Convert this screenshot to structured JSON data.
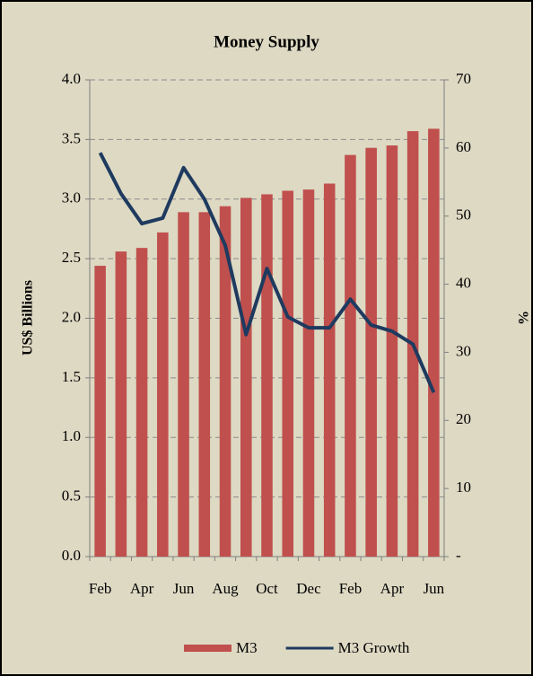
{
  "chart_data": {
    "type": "bar",
    "title": "Money Supply",
    "y_label": "US$ Billions",
    "y2_label": "%",
    "categories": [
      "Feb",
      null,
      "Apr",
      null,
      "Jun",
      null,
      "Aug",
      null,
      "Oct",
      null,
      "Dec",
      null,
      "Feb",
      null,
      "Apr",
      null,
      "Jun"
    ],
    "series": [
      {
        "name": "M3",
        "type": "bar",
        "color": "#c0504d",
        "axis": "y",
        "values": [
          2.44,
          2.56,
          2.59,
          2.72,
          2.89,
          2.89,
          2.94,
          3.01,
          3.04,
          3.07,
          3.08,
          3.13,
          3.37,
          3.43,
          3.45,
          3.57,
          3.59
        ]
      },
      {
        "name": "M3 Growth",
        "type": "line",
        "color": "#1f3a5f",
        "axis": "y2",
        "values": [
          59.3,
          53.3,
          48.9,
          49.7,
          57.1,
          52.5,
          45.7,
          32.6,
          42.3,
          35.2,
          33.6,
          33.6,
          37.8,
          34.0,
          33.1,
          31.2,
          24.1
        ]
      }
    ],
    "ylim": [
      0,
      4
    ],
    "yticks": [
      {
        "value": 0,
        "label": "0.0"
      },
      0.5,
      {
        "value": 1,
        "label": "1.0"
      },
      1.5,
      {
        "value": 2,
        "label": "2.0"
      },
      2.5,
      {
        "value": 3,
        "label": "3.0"
      },
      3.5,
      {
        "value": 4,
        "label": "4.0"
      }
    ],
    "y2lim": [
      0,
      70
    ],
    "y2ticks": [
      {
        "value": 0,
        "label": "-"
      },
      10,
      20,
      30,
      40,
      50,
      60,
      70
    ],
    "grid": true,
    "legend": "bottom"
  }
}
